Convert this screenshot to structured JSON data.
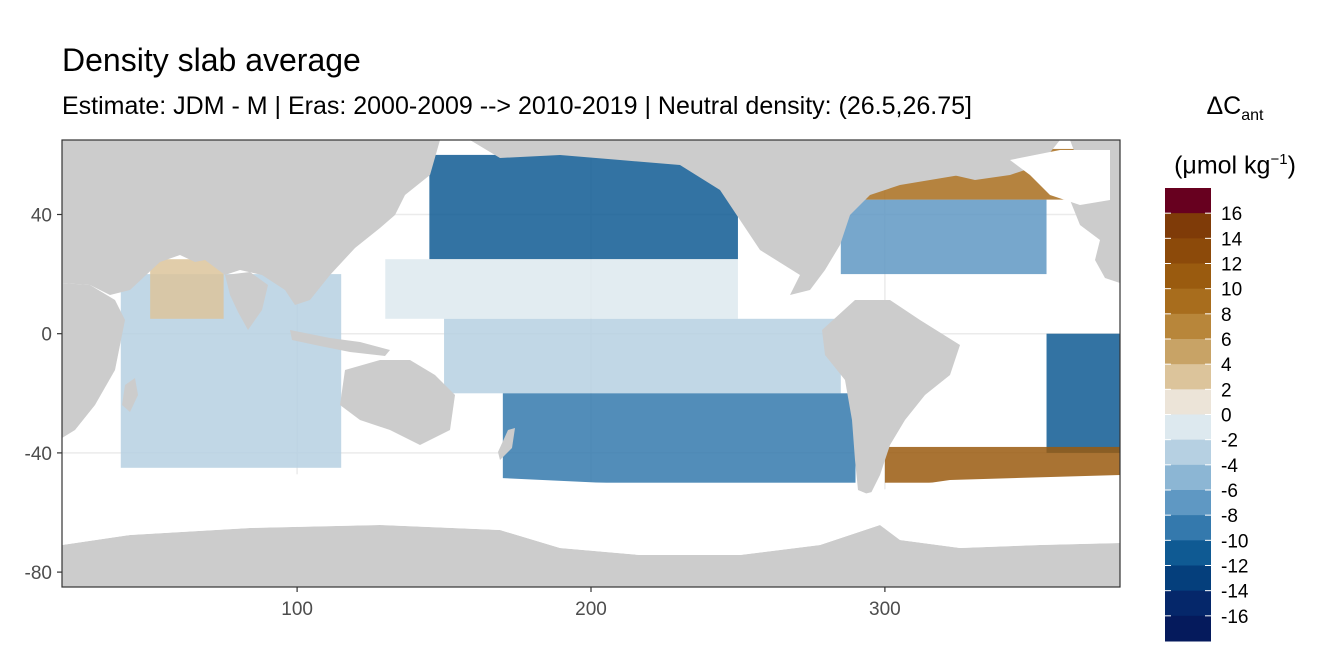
{
  "chart_data": {
    "type": "heatmap",
    "title": "Density slab average",
    "subtitle": "Estimate: JDM - M | Eras: 2000-2009 --> 2010-2019 | Neutral density: (26.5,26.75]",
    "xlabel": "",
    "ylabel": "",
    "xlim": [
      20,
      380
    ],
    "ylim": [
      -85,
      65
    ],
    "x_ticks": [
      100,
      200,
      300
    ],
    "y_ticks": [
      40,
      0,
      -40,
      -80
    ],
    "grid": true,
    "legend": {
      "title_main": "ΔC",
      "title_sub": "ant",
      "unit_prefix": "(μmol kg",
      "unit_sup": "−1",
      "unit_suffix": ")",
      "placement": "right",
      "labels": [
        "16",
        "14",
        "12",
        "10",
        "8",
        "6",
        "4",
        "2",
        "0",
        "-2",
        "-4",
        "-6",
        "-8",
        "-10",
        "-12",
        "-14",
        "-16"
      ],
      "colors": [
        "#67001f",
        "#7f3b08",
        "#8c4a0a",
        "#9a5b0f",
        "#a86d1d",
        "#b8863a",
        "#c8a366",
        "#dcc49b",
        "#ece4d8",
        "#dde9ef",
        "#b6d0e2",
        "#8cb6d4",
        "#5f98c3",
        "#3479ad",
        "#0f5a93",
        "#053f7c",
        "#05276a",
        "#051a5c"
      ]
    },
    "regions": [
      {
        "name": "north-pacific-negative",
        "lon": [
          145,
          250
        ],
        "lat": [
          25,
          60
        ],
        "value": -10
      },
      {
        "name": "north-pacific-band",
        "lon": [
          130,
          250
        ],
        "lat": [
          5,
          25
        ],
        "value": 1
      },
      {
        "name": "equatorial-pacific",
        "lon": [
          150,
          285
        ],
        "lat": [
          -20,
          5
        ],
        "value": -1
      },
      {
        "name": "south-pacific-negative",
        "lon": [
          170,
          290
        ],
        "lat": [
          -50,
          -20
        ],
        "value": -7
      },
      {
        "name": "indian-ocean",
        "lon": [
          40,
          115
        ],
        "lat": [
          -45,
          20
        ],
        "value": -2
      },
      {
        "name": "arabian-sea",
        "lon": [
          50,
          75
        ],
        "lat": [
          5,
          25
        ],
        "value": 4
      },
      {
        "name": "north-atlantic-subtropical",
        "lon": [
          285,
          355
        ],
        "lat": [
          20,
          45
        ],
        "value": -6
      },
      {
        "name": "north-atlantic-subpolar",
        "lon": [
          290,
          370
        ],
        "lat": [
          45,
          62
        ],
        "value": 10
      },
      {
        "name": "south-atlantic-east",
        "lon": [
          355,
          380
        ],
        "lat": [
          -40,
          0
        ],
        "value": -9
      },
      {
        "name": "argentine-basin",
        "lon": [
          300,
          380
        ],
        "lat": [
          -50,
          -38
        ],
        "value": 12
      }
    ]
  }
}
